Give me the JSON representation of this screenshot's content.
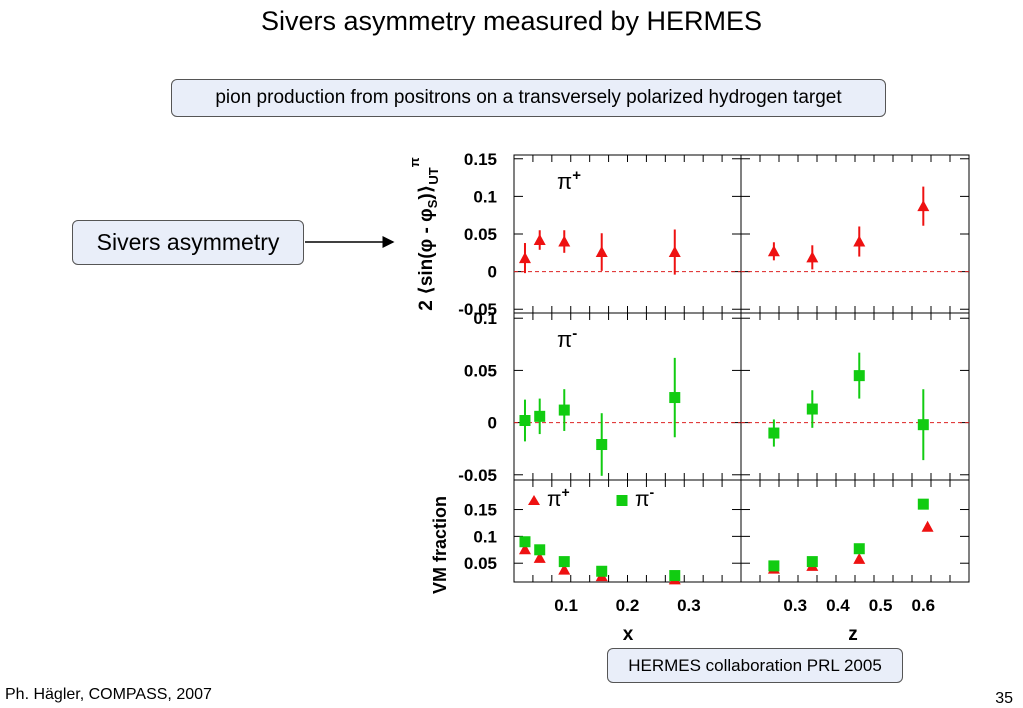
{
  "title": "Sivers asymmetry measured by HERMES",
  "subtitle": "pion production from positrons on a transversely polarized hydrogen target",
  "callout": "Sivers asymmetry",
  "reference": "HERMES collaboration PRL 2005",
  "footer": "Ph. Hägler, COMPASS, 2007",
  "page_number": "35",
  "colors": {
    "pi_plus": "#ee1111",
    "pi_minus": "#11cc11",
    "zero_line": "#dd2222",
    "box_fill": "#e9eef9"
  },
  "chart_data": [
    {
      "type": "scatter",
      "panel": "pi+ vs x",
      "label": "π+",
      "ylabel": "2 ⟨sin(φ - φS)⟩UT π",
      "ylim": [
        -0.055,
        0.155
      ],
      "yticks": [
        "0.15",
        "0.1",
        "0.05",
        "0",
        "-0.05"
      ],
      "xlim": [
        0.02,
        0.38
      ],
      "marker": "triangle",
      "series": [
        {
          "name": "π+",
          "x": [
            0.033,
            0.057,
            0.097,
            0.158,
            0.277
          ],
          "y": [
            0.018,
            0.042,
            0.04,
            0.026,
            0.026
          ],
          "err": [
            0.02,
            0.013,
            0.015,
            0.025,
            0.03
          ]
        }
      ]
    },
    {
      "type": "scatter",
      "panel": "pi+ vs z",
      "xlim": [
        0.18,
        0.7
      ],
      "ylim": [
        -0.055,
        0.155
      ],
      "marker": "triangle",
      "series": [
        {
          "name": "π+",
          "x": [
            0.25,
            0.34,
            0.45,
            0.6
          ],
          "y": [
            0.027,
            0.019,
            0.04,
            0.087
          ],
          "err": [
            0.012,
            0.016,
            0.02,
            0.026
          ]
        }
      ]
    },
    {
      "type": "scatter",
      "panel": "pi- vs x",
      "label": "π-",
      "ylim": [
        -0.055,
        0.105
      ],
      "yticks": [
        "0.1",
        "0.05",
        "0",
        "-0.05"
      ],
      "xlim": [
        0.02,
        0.38
      ],
      "marker": "square",
      "series": [
        {
          "name": "π-",
          "x": [
            0.033,
            0.057,
            0.097,
            0.158,
            0.277
          ],
          "y": [
            0.002,
            0.006,
            0.012,
            -0.021,
            0.024
          ],
          "err": [
            0.02,
            0.017,
            0.02,
            0.03,
            0.038
          ]
        }
      ]
    },
    {
      "type": "scatter",
      "panel": "pi- vs z",
      "xlim": [
        0.18,
        0.7
      ],
      "ylim": [
        -0.055,
        0.105
      ],
      "marker": "square",
      "series": [
        {
          "name": "π-",
          "x": [
            0.25,
            0.34,
            0.45,
            0.6
          ],
          "y": [
            -0.01,
            0.013,
            0.045,
            -0.002
          ],
          "err": [
            0.013,
            0.018,
            0.022,
            0.034
          ]
        }
      ]
    },
    {
      "type": "scatter",
      "panel": "VM fraction vs x",
      "ylabel": "VM fraction",
      "ylim": [
        0.015,
        0.205
      ],
      "yticks": [
        "0.15",
        "0.1",
        "0.05"
      ],
      "xlim": [
        0.02,
        0.38
      ],
      "xticks": [
        "0.1",
        "0.2",
        "0.3"
      ],
      "xlabel": "x",
      "legend": [
        "π+",
        "π-"
      ],
      "series": [
        {
          "name": "π+",
          "marker": "triangle",
          "x": [
            0.033,
            0.057,
            0.097,
            0.158,
            0.277
          ],
          "y": [
            0.076,
            0.06,
            0.038,
            0.026,
            0.02
          ]
        },
        {
          "name": "π-",
          "marker": "square",
          "x": [
            0.033,
            0.057,
            0.097,
            0.158,
            0.277
          ],
          "y": [
            0.09,
            0.075,
            0.053,
            0.035,
            0.027
          ]
        }
      ]
    },
    {
      "type": "scatter",
      "panel": "VM fraction vs z",
      "ylim": [
        0.015,
        0.205
      ],
      "xlim": [
        0.18,
        0.7
      ],
      "xticks": [
        "0.3",
        "0.4",
        "0.5",
        "0.6"
      ],
      "xlabel": "z",
      "series": [
        {
          "name": "π+",
          "marker": "triangle",
          "x": [
            0.25,
            0.34,
            0.45,
            0.61
          ],
          "y": [
            0.04,
            0.045,
            0.058,
            0.118
          ]
        },
        {
          "name": "π-",
          "marker": "square",
          "x": [
            0.25,
            0.34,
            0.45,
            0.6
          ],
          "y": [
            0.045,
            0.053,
            0.077,
            0.16
          ]
        }
      ]
    }
  ]
}
